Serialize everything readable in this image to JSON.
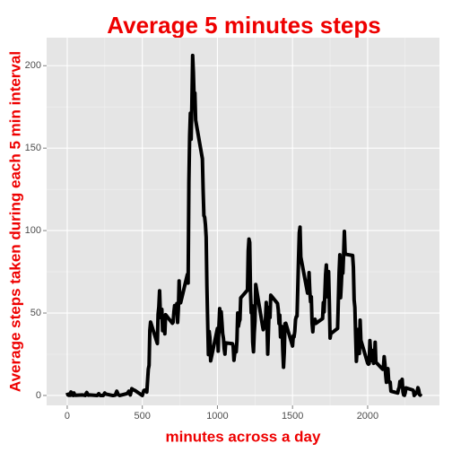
{
  "chart_data": {
    "type": "line",
    "title": "Average 5 minutes steps",
    "x_label": "minutes across a day",
    "y_label": "Average steps taken during each 5 min interval",
    "color": "#000000",
    "title_color": "#ee0000",
    "grid": true,
    "xlim": [
      -137,
      2478
    ],
    "ylim": [
      -6,
      217
    ],
    "xticks": [
      0,
      500,
      1000,
      1500,
      2000
    ],
    "yticks": [
      0,
      50,
      100,
      150,
      200
    ],
    "xminor_ticks": [
      250,
      750,
      1250,
      1750,
      2250
    ],
    "yminor_ticks": [
      25,
      75,
      125,
      175
    ],
    "x": [
      0,
      5,
      10,
      15,
      20,
      25,
      30,
      35,
      40,
      45,
      50,
      55,
      100,
      110,
      120,
      125,
      130,
      140,
      150,
      200,
      210,
      220,
      230,
      240,
      250,
      255,
      300,
      310,
      320,
      330,
      340,
      350,
      400,
      410,
      420,
      430,
      440,
      450,
      500,
      510,
      520,
      530,
      540,
      545,
      550,
      555,
      600,
      605,
      610,
      615,
      620,
      625,
      630,
      635,
      640,
      645,
      650,
      655,
      700,
      705,
      710,
      715,
      720,
      725,
      730,
      735,
      740,
      745,
      750,
      755,
      800,
      805,
      810,
      815,
      820,
      825,
      830,
      835,
      840,
      845,
      850,
      855,
      900,
      905,
      910,
      915,
      920,
      925,
      930,
      935,
      940,
      945,
      950,
      955,
      1000,
      1005,
      1010,
      1015,
      1020,
      1025,
      1030,
      1035,
      1040,
      1045,
      1050,
      1055,
      1100,
      1105,
      1110,
      1115,
      1120,
      1125,
      1130,
      1135,
      1140,
      1145,
      1150,
      1155,
      1200,
      1205,
      1210,
      1215,
      1220,
      1225,
      1230,
      1235,
      1240,
      1245,
      1250,
      1255,
      1300,
      1305,
      1310,
      1315,
      1320,
      1325,
      1330,
      1335,
      1340,
      1345,
      1350,
      1355,
      1400,
      1405,
      1410,
      1415,
      1420,
      1425,
      1430,
      1435,
      1440,
      1445,
      1450,
      1455,
      1500,
      1505,
      1510,
      1515,
      1520,
      1525,
      1530,
      1535,
      1540,
      1545,
      1550,
      1555,
      1600,
      1605,
      1610,
      1615,
      1620,
      1625,
      1630,
      1635,
      1640,
      1645,
      1650,
      1655,
      1700,
      1705,
      1710,
      1715,
      1720,
      1725,
      1730,
      1735,
      1740,
      1745,
      1750,
      1755,
      1800,
      1805,
      1810,
      1815,
      1820,
      1825,
      1830,
      1835,
      1840,
      1845,
      1850,
      1855,
      1900,
      1905,
      1910,
      1915,
      1920,
      1925,
      1930,
      1935,
      1940,
      1945,
      1950,
      1955,
      2000,
      2005,
      2010,
      2015,
      2020,
      2025,
      2030,
      2035,
      2040,
      2045,
      2050,
      2055,
      2100,
      2105,
      2110,
      2115,
      2120,
      2125,
      2130,
      2135,
      2140,
      2145,
      2150,
      2155,
      2200,
      2205,
      2210,
      2215,
      2220,
      2225,
      2230,
      2235,
      2240,
      2245,
      2250,
      2255,
      2300,
      2305,
      2310,
      2315,
      2320,
      2325,
      2330,
      2335,
      2340,
      2345,
      2350,
      2355
    ],
    "values": [
      1.7,
      0.3,
      0.1,
      0.2,
      0.1,
      2.1,
      0.5,
      0.9,
      0,
      1.5,
      0.3,
      0.1,
      0.3,
      0.2,
      0,
      1.1,
      1.8,
      0.2,
      0.3,
      0,
      1.1,
      0,
      0,
      0,
      1.5,
      0.9,
      0,
      0,
      0.2,
      2.6,
      0.5,
      0,
      1.2,
      2.6,
      0.3,
      4.1,
      3.5,
      3.1,
      0,
      3,
      3.3,
      2.1,
      16,
      18.3,
      39.5,
      44.5,
      31.5,
      49.3,
      53.8,
      63.5,
      50,
      47.1,
      52.2,
      39.3,
      44,
      44.2,
      37.4,
      49,
      43.8,
      44.4,
      50.5,
      54.5,
      49.9,
      50.9,
      55.7,
      44.3,
      52.3,
      69.5,
      57.8,
      56.2,
      73.4,
      68.2,
      129.4,
      157.5,
      171.2,
      155.4,
      177.3,
      206.2,
      195.9,
      179.6,
      183.4,
      167,
      143.5,
      124,
      109.1,
      108.1,
      103.7,
      96,
      66.2,
      45.2,
      24.8,
      38.8,
      35,
      21,
      40.6,
      26.9,
      42.4,
      52.7,
      38.9,
      50.8,
      44.3,
      37.4,
      34.7,
      28.3,
      25.1,
      31.9,
      31.4,
      29.7,
      21.3,
      25.5,
      28.4,
      26.5,
      33.4,
      50,
      42,
      44.6,
      46,
      59.2,
      63.9,
      87.7,
      94.8,
      92.8,
      63.4,
      50.2,
      54.5,
      32.4,
      26.5,
      37.7,
      45.1,
      67.3,
      42.3,
      39.9,
      43.3,
      41,
      46.2,
      56.4,
      42.8,
      25.1,
      40,
      53.5,
      47.3,
      60.8,
      55.8,
      52,
      43.6,
      48.7,
      35.5,
      37.5,
      41.8,
      27.5,
      17.1,
      26.1,
      43.6,
      43.8,
      30,
      36.1,
      35.5,
      38.8,
      46,
      47.8,
      48.1,
      65.3,
      82.9,
      98.7,
      102.1,
      84,
      62.1,
      64.1,
      74.5,
      63.2,
      56.9,
      59.8,
      43.9,
      38.6,
      44.7,
      45.5,
      46.2,
      43.7,
      46.6,
      56.3,
      50.7,
      61.2,
      73.4,
      79.1,
      68.9,
      59.7,
      75.1,
      56.5,
      34.8,
      37.5,
      40.7,
      58,
      74.7,
      85.3,
      59.3,
      67.8,
      77.7,
      74.2,
      85.3,
      99.5,
      86.6,
      85.6,
      84.9,
      77.8,
      58,
      53.4,
      36.3,
      20.7,
      27.4,
      40,
      30.2,
      25.5,
      45.7,
      33.5,
      19.6,
      19,
      19.3,
      33.3,
      26.8,
      21.2,
      27.3,
      21.3,
      19.5,
      21.3,
      32.3,
      20.2,
      15.9,
      17.2,
      23.5,
      19.2,
      12.5,
      8,
      14.7,
      16.3,
      8.7,
      7.8,
      8.1,
      2.6,
      1.5,
      3.7,
      4.8,
      8.5,
      7.1,
      8.7,
      9.8,
      2.2,
      0.3,
      0.1,
      1.6,
      4.6,
      3.3,
      2.8,
      0,
      0.8,
      1,
      1.6,
      2.6,
      4.7,
      3.3,
      0.6,
      0.2,
      1.1
    ]
  }
}
